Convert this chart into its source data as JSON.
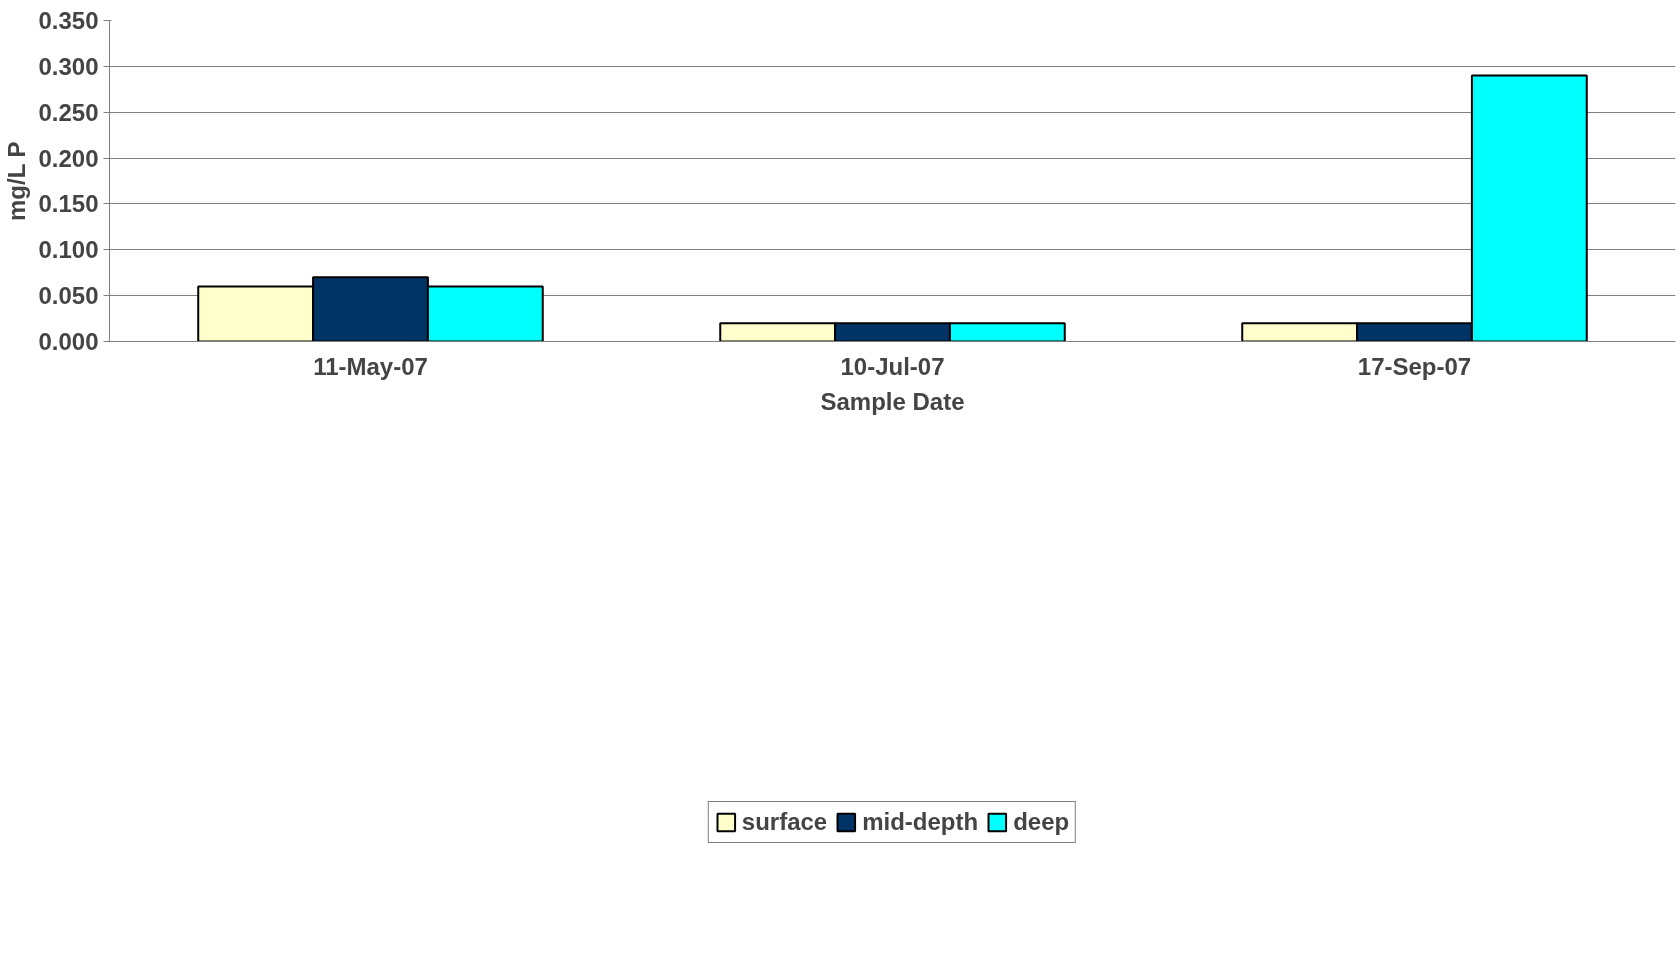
{
  "chart_data": {
    "type": "bar",
    "xlabel": "Sample Date",
    "ylabel": "mg/L P",
    "categories": [
      "11-May-07",
      "10-Jul-07",
      "17-Sep-07"
    ],
    "series": [
      {
        "name": "surface",
        "color": "#ffffcc",
        "values": [
          0.06,
          0.02,
          0.02
        ]
      },
      {
        "name": "mid-depth",
        "color": "#003366",
        "values": [
          0.07,
          0.02,
          0.02
        ]
      },
      {
        "name": "deep",
        "color": "#00ffff",
        "values": [
          0.06,
          0.02,
          0.29
        ]
      }
    ],
    "ylim": [
      0,
      0.35
    ],
    "yticks": [
      {
        "value": 0,
        "label": "0.000"
      },
      {
        "value": 0.05,
        "label": "0.050"
      },
      {
        "value": 0.1,
        "label": "0.100"
      },
      {
        "value": 0.15,
        "label": "0.150"
      },
      {
        "value": 0.2,
        "label": "0.200"
      },
      {
        "value": 0.25,
        "label": "0.250"
      },
      {
        "value": 0.3,
        "label": "0.300"
      },
      {
        "value": 0.35,
        "label": "0.350"
      }
    ],
    "grid": "y",
    "legend": "bottom"
  }
}
